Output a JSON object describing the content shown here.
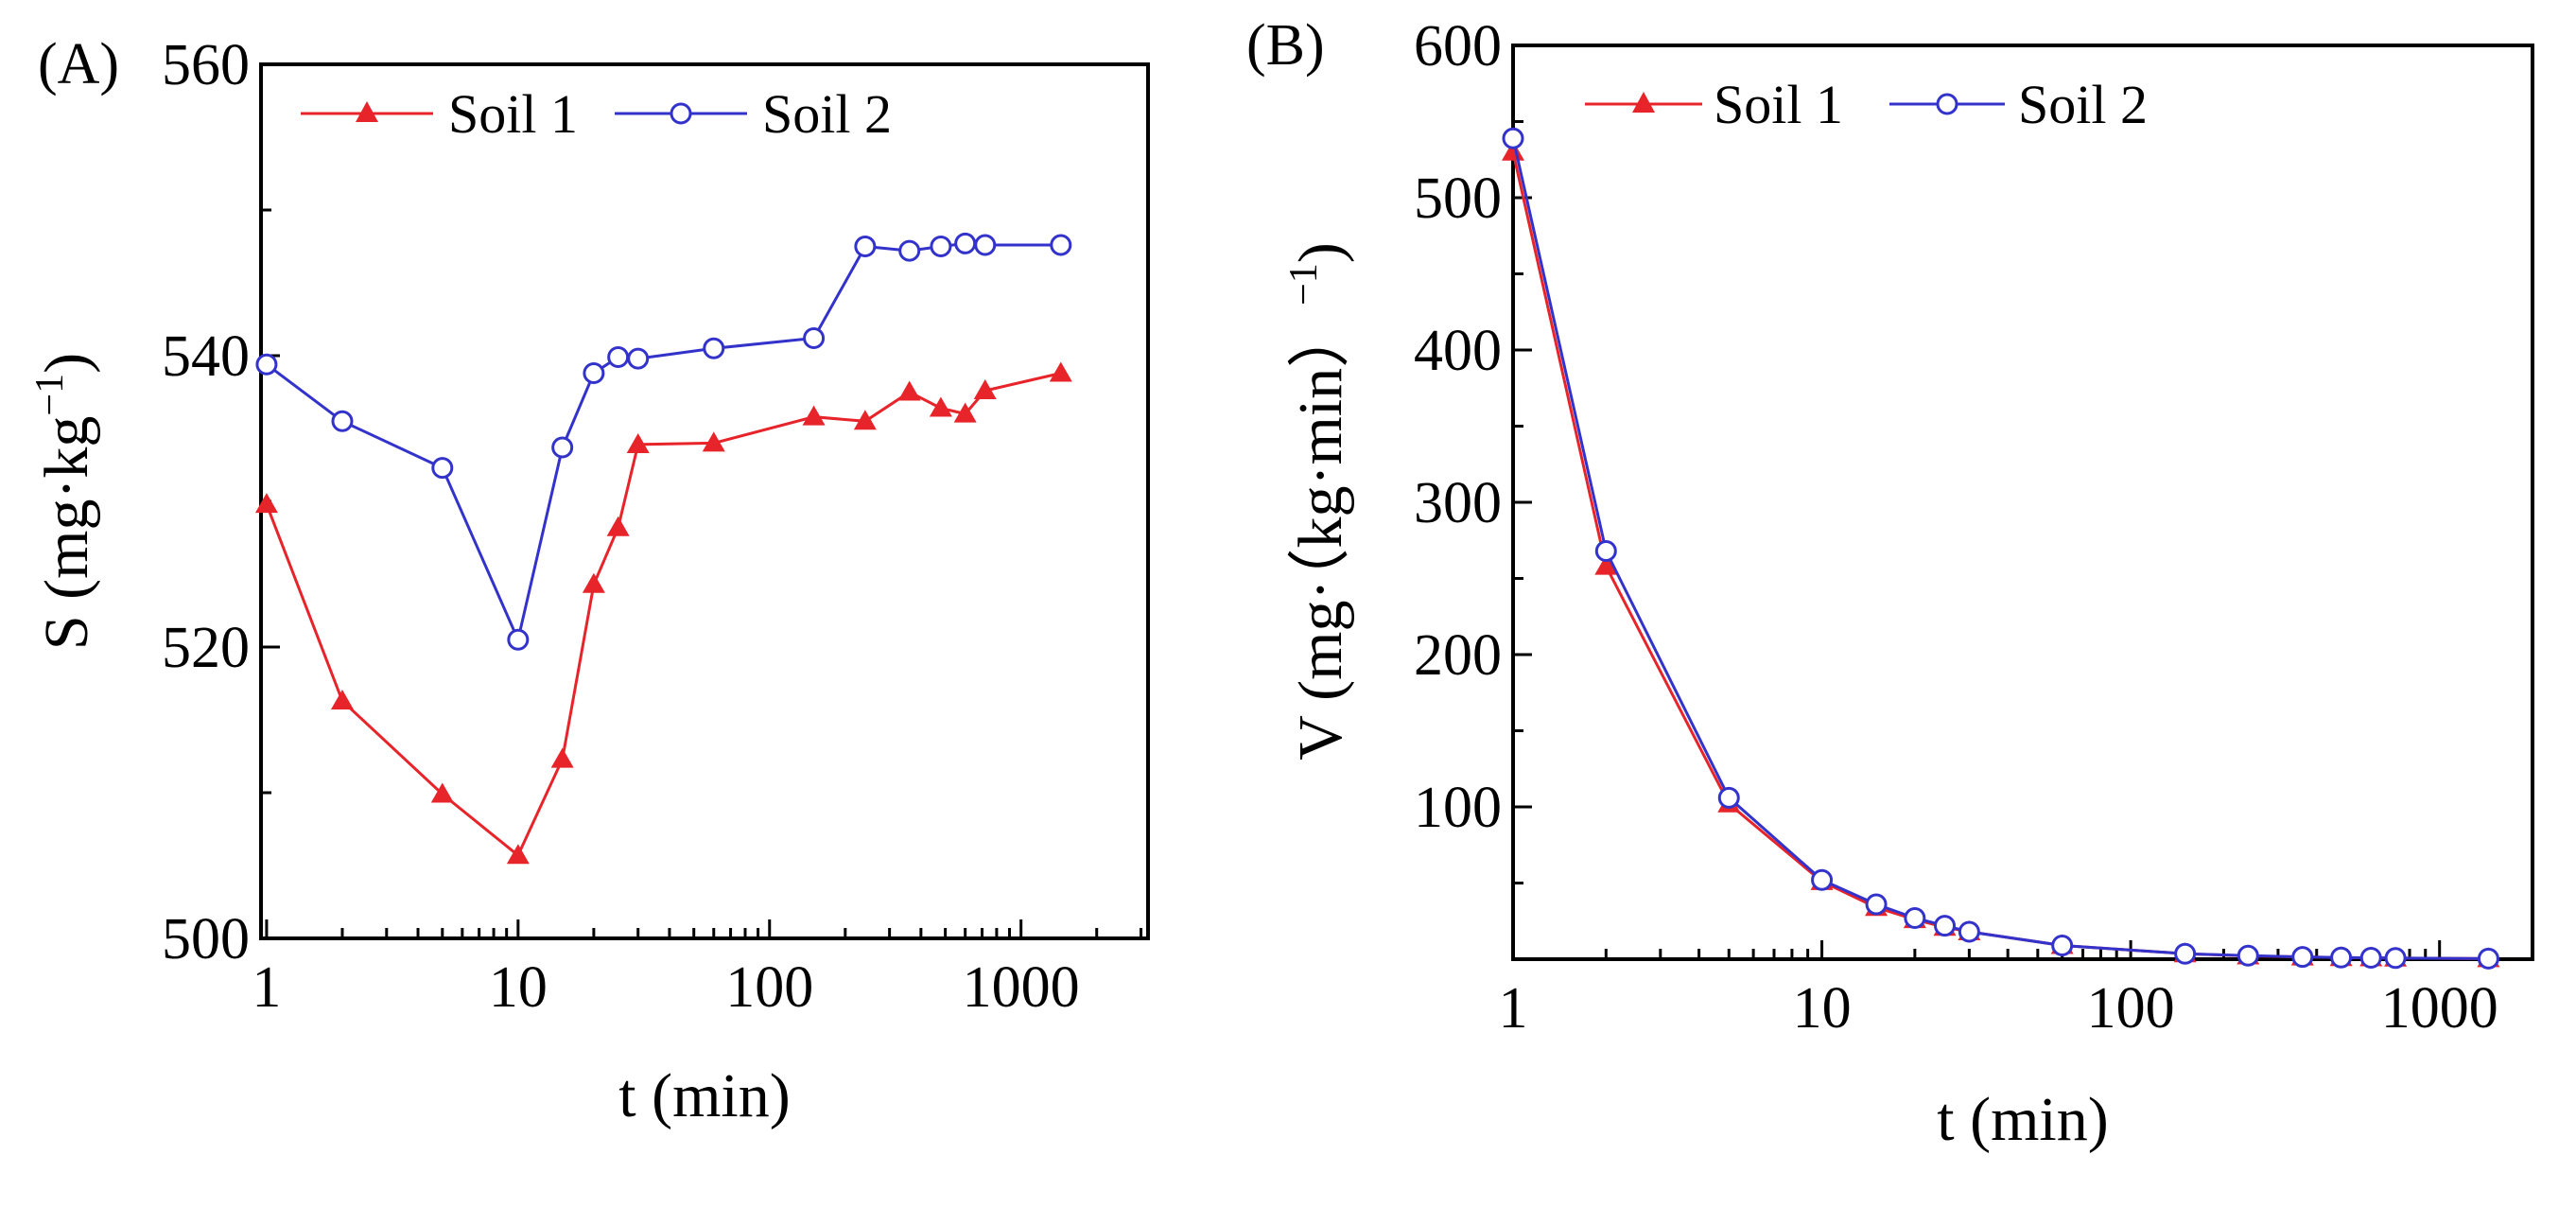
{
  "chart_data": [
    {
      "type": "line",
      "panel_label": "(A)",
      "xlabel": "t (min)",
      "ylabel": "S (mg·kg",
      "ylabel_sup": "−1",
      "ylabel_close": ")",
      "x_scale": "log",
      "xlim": [
        0.95,
        3200
      ],
      "ylim": [
        500,
        560
      ],
      "xticks": [
        1,
        10,
        100,
        1000
      ],
      "xtick_labels": [
        "1",
        "10",
        "100",
        "1000"
      ],
      "yticks": [
        500,
        520,
        540,
        560
      ],
      "ytick_labels": [
        "500",
        "520",
        "540",
        "560"
      ],
      "legend_position": "top-left",
      "x": [
        1,
        2,
        5,
        10,
        15,
        20,
        25,
        30,
        60,
        150,
        240,
        360,
        480,
        600,
        720,
        1440
      ],
      "series": [
        {
          "name": "Soil 1",
          "color": "#e8242b",
          "marker": "triangle",
          "values": [
            529.8,
            516.3,
            509.9,
            505.7,
            512.3,
            524.3,
            528.2,
            533.9,
            534.0,
            535.8,
            535.5,
            537.5,
            536.4,
            536.0,
            537.6,
            538.8
          ]
        },
        {
          "name": "Soil 2",
          "color": "#3333cc",
          "marker": "circle",
          "values": [
            539.4,
            535.5,
            532.3,
            520.5,
            533.7,
            538.8,
            539.9,
            539.8,
            540.5,
            541.2,
            547.5,
            547.2,
            547.5,
            547.7,
            547.6,
            547.6
          ]
        }
      ]
    },
    {
      "type": "line",
      "panel_label": "(B)",
      "xlabel": "t (min)",
      "ylabel": "V (mg·（kg·min）",
      "ylabel_sup": "−1",
      "ylabel_close": ")",
      "x_scale": "log",
      "xlim": [
        1,
        2000
      ],
      "ylim": [
        0,
        600
      ],
      "xticks": [
        1,
        10,
        100,
        1000
      ],
      "xtick_labels": [
        "1",
        "10",
        "100",
        "1000"
      ],
      "yticks": [
        100,
        200,
        300,
        400,
        500,
        600
      ],
      "ytick_labels": [
        "100",
        "200",
        "300",
        "400",
        "500",
        "600"
      ],
      "legend_position": "top-left",
      "x": [
        1,
        2,
        5,
        10,
        15,
        20,
        25,
        30,
        60,
        150,
        240,
        360,
        480,
        600,
        720,
        1440
      ],
      "series": [
        {
          "name": "Soil 1",
          "color": "#e8242b",
          "marker": "triangle",
          "values": [
            530,
            258,
            102,
            51,
            34,
            26,
            21,
            18,
            9,
            3.6,
            2.2,
            1.5,
            1.1,
            0.9,
            0.75,
            0.37
          ]
        },
        {
          "name": "Soil 2",
          "color": "#3333cc",
          "marker": "circle",
          "values": [
            539,
            268,
            106,
            52,
            36,
            27,
            22,
            18,
            9,
            3.6,
            2.3,
            1.5,
            1.1,
            0.9,
            0.76,
            0.38
          ]
        }
      ]
    }
  ]
}
